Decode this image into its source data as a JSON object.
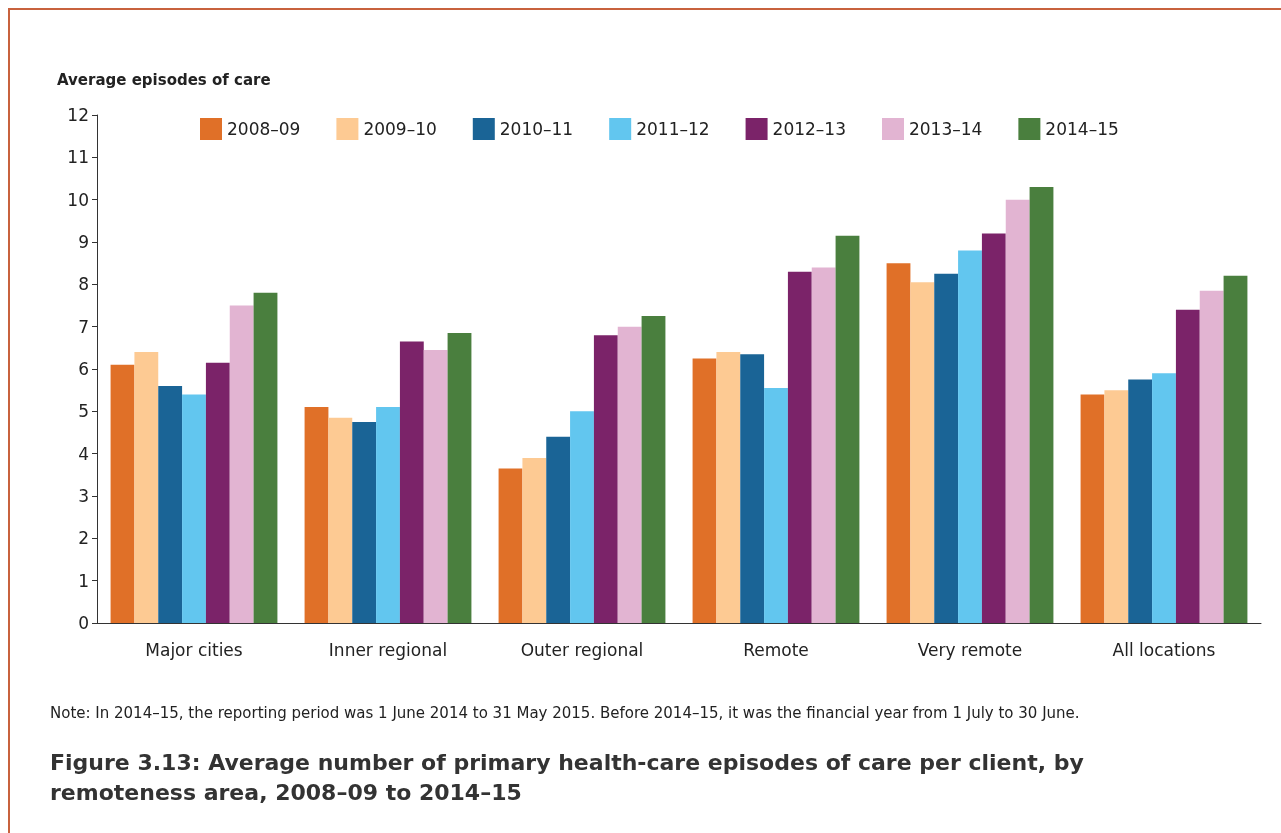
{
  "chart_data": {
    "type": "bar",
    "title": "Figure 3.13: Average number of primary health-care episodes of care per client, by remoteness area, 2008–09 to 2014–15",
    "ylabel": "Average episodes of care",
    "annotations": [
      "Note: In 2014–15, the reporting period was 1 June 2014 to 31 May 2015. Before 2014–15, it was the financial year from 1 July to 30 June."
    ],
    "categories": [
      "Major cities",
      "Inner regional",
      "Outer regional",
      "Remote",
      "Very remote",
      "All locations"
    ],
    "series": [
      {
        "name": "2008–09",
        "color": "#e07028",
        "values": [
          6.1,
          5.1,
          3.65,
          6.25,
          8.5,
          5.4
        ]
      },
      {
        "name": "2009–10",
        "color": "#fdca93",
        "values": [
          6.4,
          4.85,
          3.9,
          6.4,
          8.05,
          5.5
        ]
      },
      {
        "name": "2010–11",
        "color": "#1a6496",
        "values": [
          5.6,
          4.75,
          4.4,
          6.35,
          8.25,
          5.75
        ]
      },
      {
        "name": "2011–12",
        "color": "#62c6ef",
        "values": [
          5.4,
          5.1,
          5.0,
          5.55,
          8.8,
          5.9
        ]
      },
      {
        "name": "2012–13",
        "color": "#7b2369",
        "values": [
          6.15,
          6.65,
          6.8,
          8.3,
          9.2,
          7.4
        ]
      },
      {
        "name": "2013–14",
        "color": "#e2b4d2",
        "values": [
          7.5,
          6.45,
          7.0,
          8.4,
          10.0,
          7.85
        ]
      },
      {
        "name": "2014–15",
        "color": "#4a7f3e",
        "values": [
          7.8,
          6.85,
          7.25,
          9.15,
          10.3,
          8.2
        ]
      }
    ],
    "ylim": [
      0,
      12
    ],
    "yticks": [
      0,
      1,
      2,
      3,
      4,
      5,
      6,
      7,
      8,
      9,
      10,
      11,
      12
    ],
    "grid": false,
    "legend": "top"
  }
}
